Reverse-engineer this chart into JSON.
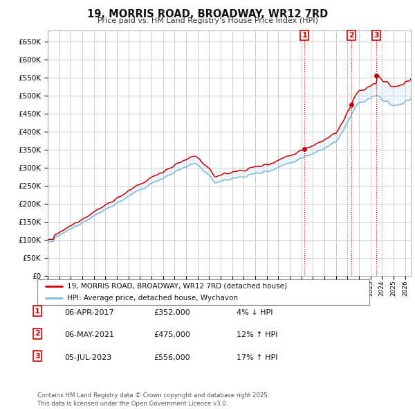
{
  "title": "19, MORRIS ROAD, BROADWAY, WR12 7RD",
  "subtitle": "Price paid vs. HM Land Registry's House Price Index (HPI)",
  "hpi_color": "#7ab8d9",
  "price_color": "#cc0000",
  "annotation_color": "#cc0000",
  "fill_color": "#d0e8f5",
  "background_color": "#ffffff",
  "grid_color": "#cccccc",
  "ylim": [
    0,
    680000
  ],
  "yticks": [
    0,
    50000,
    100000,
    150000,
    200000,
    250000,
    300000,
    350000,
    400000,
    450000,
    500000,
    550000,
    600000,
    650000
  ],
  "xlim_start": 1995.0,
  "xlim_end": 2026.5,
  "purchase_years": [
    2017.27,
    2021.35,
    2023.51
  ],
  "purchase_prices": [
    352000,
    475000,
    556000
  ],
  "purchase_labels": [
    "1",
    "2",
    "3"
  ],
  "legend_entries": [
    "19, MORRIS ROAD, BROADWAY, WR12 7RD (detached house)",
    "HPI: Average price, detached house, Wychavon"
  ],
  "table_rows": [
    {
      "num": "1",
      "date": "06-APR-2017",
      "price": "£352,000",
      "change": "4% ↓ HPI"
    },
    {
      "num": "2",
      "date": "06-MAY-2021",
      "price": "£475,000",
      "change": "12% ↑ HPI"
    },
    {
      "num": "3",
      "date": "05-JUL-2023",
      "price": "£556,000",
      "change": "17% ↑ HPI"
    }
  ],
  "footer": "Contains HM Land Registry data © Crown copyright and database right 2025.\nThis data is licensed under the Open Government Licence v3.0."
}
